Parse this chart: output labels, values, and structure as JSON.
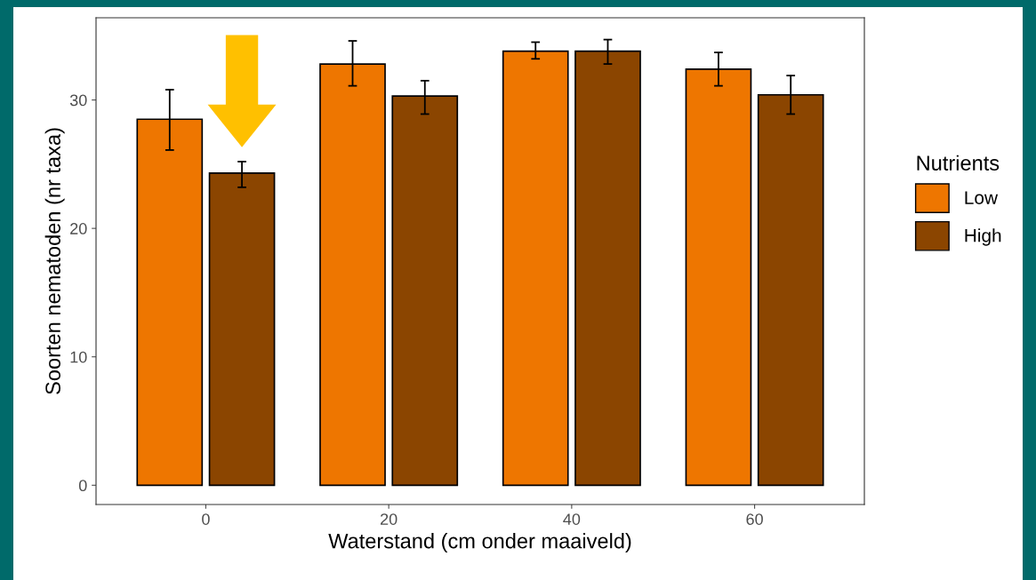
{
  "chart_data": {
    "type": "bar",
    "xlabel": "Waterstand (cm onder maaiveld)",
    "ylabel": "Soorten nematoden (nr taxa)",
    "legend_title": "Nutrients",
    "categories": [
      "0",
      "20",
      "40",
      "60"
    ],
    "series": [
      {
        "name": "Low",
        "color": "#ee7600",
        "values": [
          28.5,
          32.8,
          33.8,
          32.4
        ],
        "errors": [
          [
            26.1,
            30.8
          ],
          [
            31.1,
            34.6
          ],
          [
            33.2,
            34.5
          ],
          [
            31.1,
            33.7
          ]
        ]
      },
      {
        "name": "High",
        "color": "#8b4500",
        "values": [
          24.3,
          30.3,
          33.8,
          30.4
        ],
        "errors": [
          [
            23.2,
            25.2
          ],
          [
            28.9,
            31.5
          ],
          [
            32.8,
            34.7
          ],
          [
            28.9,
            31.9
          ]
        ]
      }
    ],
    "ylim": [
      -1.5,
      36.4
    ],
    "yticks": [
      0,
      10,
      20,
      30
    ],
    "grid": false,
    "legend": "right"
  }
}
